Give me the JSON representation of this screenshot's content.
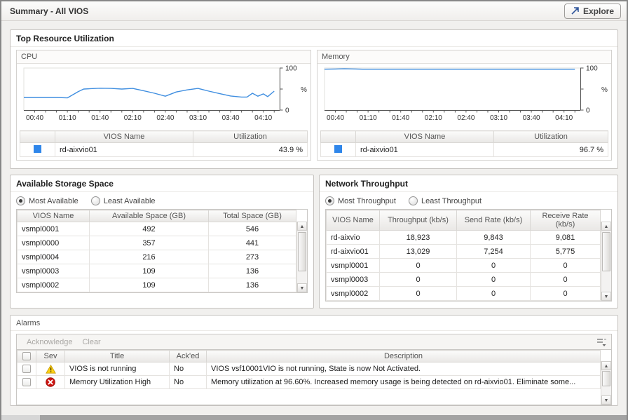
{
  "page": {
    "title": "Summary - All VIOS",
    "explore_label": "Explore"
  },
  "panels": {
    "top_resource": {
      "title": "Top Resource Utilization"
    },
    "cpu": {
      "title": "CPU",
      "legend_color": "#2f86ea",
      "table": {
        "headers": [
          "VIOS Name",
          "Utilization"
        ],
        "rows": [
          {
            "name": "rd-aixvio01",
            "utilization": "43.9 %"
          }
        ]
      }
    },
    "memory": {
      "title": "Memory",
      "legend_color": "#2f86ea",
      "table": {
        "headers": [
          "VIOS Name",
          "Utilization"
        ],
        "rows": [
          {
            "name": "rd-aixvio01",
            "utilization": "96.7 %"
          }
        ]
      }
    },
    "storage": {
      "title": "Available Storage Space",
      "options": [
        {
          "label": "Most Available",
          "selected": true
        },
        {
          "label": "Least Available",
          "selected": false
        }
      ],
      "headers": [
        "VIOS Name",
        "Available Space (GB)",
        "Total Space (GB)"
      ],
      "rows": [
        [
          "vsmpl0001",
          "492",
          "546"
        ],
        [
          "vsmpl0000",
          "357",
          "441"
        ],
        [
          "vsmpl0004",
          "216",
          "273"
        ],
        [
          "vsmpl0003",
          "109",
          "136"
        ],
        [
          "vsmpl0002",
          "109",
          "136"
        ]
      ]
    },
    "network": {
      "title": "Network Throughput",
      "options": [
        {
          "label": "Most Throughput",
          "selected": true
        },
        {
          "label": "Least Throughput",
          "selected": false
        }
      ],
      "headers": [
        "VIOS Name",
        "Throughput (kb/s)",
        "Send Rate (kb/s)",
        "Receive Rate (kb/s)"
      ],
      "rows": [
        [
          "rd-aixvio",
          "18,923",
          "9,843",
          "9,081"
        ],
        [
          "rd-aixvio01",
          "13,029",
          "7,254",
          "5,775"
        ],
        [
          "vsmpl0001",
          "0",
          "0",
          "0"
        ],
        [
          "vsmpl0003",
          "0",
          "0",
          "0"
        ],
        [
          "vsmpl0002",
          "0",
          "0",
          "0"
        ]
      ]
    },
    "alarms": {
      "title": "Alarms",
      "toolbar": {
        "acknowledge_label": "Acknowledge",
        "clear_label": "Clear"
      },
      "headers": [
        "Sev",
        "Title",
        "Ack'ed",
        "Description"
      ],
      "rows": [
        {
          "severity": "warning",
          "title": "VIOS is not running",
          "acked": "No",
          "description": "VIOS vsf10001VIO is not running, State is now Not Activated."
        },
        {
          "severity": "critical",
          "title": "Memory Utilization High",
          "acked": "No",
          "description": "Memory utilization at 96.60%. Increased memory usage is being detected on rd-aixvio01. Eliminate some..."
        }
      ]
    }
  },
  "chart_data": [
    {
      "id": "cpu",
      "type": "line",
      "title": "CPU utilization over time",
      "ylabel": "%",
      "ylim": [
        0,
        100
      ],
      "y_ticks": [
        0,
        50,
        100
      ],
      "y_tick_labels": [
        "0",
        "",
        "100"
      ],
      "xlim_minutes": [
        30,
        265
      ],
      "minor_tick_every": 10,
      "x_tick_labels": [
        "00:40",
        "01:10",
        "01:40",
        "02:10",
        "02:40",
        "03:10",
        "03:40",
        "04:10"
      ],
      "series": [
        {
          "name": "rd-aixvio01",
          "color": "#3f8ee0",
          "points": [
            [
              30,
              30
            ],
            [
              40,
              30
            ],
            [
              50,
              30
            ],
            [
              60,
              30
            ],
            [
              70,
              29
            ],
            [
              80,
              44
            ],
            [
              85,
              50
            ],
            [
              100,
              52
            ],
            [
              110,
              51.5
            ],
            [
              120,
              50
            ],
            [
              130,
              51.5
            ],
            [
              140,
              46
            ],
            [
              150,
              40
            ],
            [
              160,
              33
            ],
            [
              170,
              43
            ],
            [
              180,
              48
            ],
            [
              190,
              51.5
            ],
            [
              200,
              45
            ],
            [
              210,
              39
            ],
            [
              220,
              33.5
            ],
            [
              230,
              31
            ],
            [
              235,
              31
            ],
            [
              240,
              40
            ],
            [
              245,
              33
            ],
            [
              250,
              38.5
            ],
            [
              254,
              32
            ],
            [
              260,
              45
            ]
          ]
        }
      ]
    },
    {
      "id": "memory",
      "type": "line",
      "title": "Memory utilization over time",
      "ylabel": "%",
      "ylim": [
        0,
        100
      ],
      "y_ticks": [
        0,
        50,
        100
      ],
      "y_tick_labels": [
        "0",
        "",
        "100"
      ],
      "xlim_minutes": [
        30,
        265
      ],
      "minor_tick_every": 10,
      "x_tick_labels": [
        "00:40",
        "01:10",
        "01:40",
        "02:10",
        "02:40",
        "03:10",
        "03:40",
        "04:10"
      ],
      "series": [
        {
          "name": "rd-aixvio01",
          "color": "#3f8ee0",
          "points": [
            [
              30,
              97.2
            ],
            [
              40,
              97.6
            ],
            [
              48,
              98.2
            ],
            [
              55,
              97.8
            ],
            [
              65,
              97.2
            ],
            [
              100,
              97.2
            ],
            [
              150,
              97.2
            ],
            [
              200,
              97.2
            ],
            [
              260,
              97.2
            ]
          ]
        }
      ]
    }
  ]
}
